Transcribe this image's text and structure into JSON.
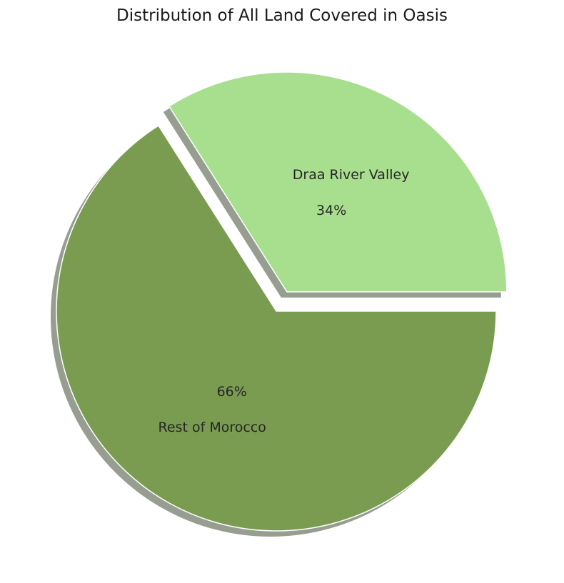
{
  "chart_data": {
    "type": "pie",
    "title": "Distribution of All Land Covered in Oasis",
    "slices": [
      {
        "label": "Draa River Valley",
        "value": 34,
        "pct_label": "34%",
        "color": "#a8df8e",
        "exploded": true
      },
      {
        "label": "Rest of Morocco",
        "value": 66,
        "pct_label": "66%",
        "color": "#7a9c51",
        "exploded": false
      }
    ],
    "start_angle_deg": 0,
    "direction": "counterclockwise",
    "shadow": true,
    "shadow_color": "#6b7562",
    "edge_color": "#ffffff"
  }
}
